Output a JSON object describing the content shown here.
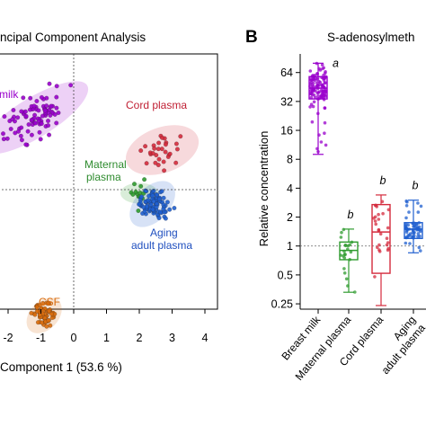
{
  "panel_a": {
    "title_fragment": "ncipal Component Analysis",
    "xlabel_fragment": "Component 1 (53.6 %)",
    "labels": {
      "breast_milk": "milk",
      "cord_plasma": "Cord plasma",
      "maternal_plasma_line1": "Maternal",
      "maternal_plasma_line2": "plasma",
      "aging_line1": "Aging",
      "aging_line2": "adult plasma",
      "csf": "CSF"
    },
    "colors": {
      "breast_milk": "#9900cc",
      "cord_plasma": "#d42a3c",
      "maternal_plasma": "#2e9b2e",
      "aging_adult_plasma": "#1f5fcf",
      "csf": "#d86b0c"
    },
    "chart_data": {
      "type": "scatter",
      "xlim": [
        -2.2,
        4.2
      ],
      "x_ticks": [
        "-2",
        "-1",
        "0",
        "1",
        "2",
        "3",
        "4"
      ],
      "reference_lines": {
        "x": 0,
        "y": 0
      },
      "groups": [
        {
          "id": "breast_milk",
          "label_key": "milk",
          "center": [
            -1.2,
            1.0
          ],
          "spread": [
            0.9,
            0.35
          ],
          "n": 90
        },
        {
          "id": "cord_plasma",
          "label_key": "Cord plasma",
          "center": [
            2.7,
            0.55
          ],
          "spread": [
            0.55,
            0.4
          ],
          "n": 30
        },
        {
          "id": "maternal_plasma",
          "label_key": "Maternal plasma",
          "center": [
            2.0,
            -0.05
          ],
          "spread": [
            0.2,
            0.25
          ],
          "n": 14
        },
        {
          "id": "aging_adult_plasma",
          "label_key": "Aging adult plasma",
          "center": [
            2.4,
            -0.2
          ],
          "spread": [
            0.4,
            0.3
          ],
          "n": 90
        },
        {
          "id": "csf",
          "label_key": "CSF",
          "center": [
            -0.9,
            -1.75
          ],
          "spread": [
            0.3,
            0.25
          ],
          "n": 60
        }
      ]
    }
  },
  "panel_b": {
    "panel_letter": "B",
    "title_fragment": "S-adenosylmeth",
    "ylabel": "Relative concentration",
    "colors": {
      "breast_milk": "#9900cc",
      "maternal_plasma": "#2e9b2e",
      "cord_plasma": "#d42a3c",
      "aging_adult_plasma": "#1f5fcf"
    },
    "chart_data": {
      "type": "box",
      "y_scale": "log2",
      "ylim": [
        0.22,
        100
      ],
      "y_ticks": [
        "0.25",
        "0.5",
        "1",
        "2",
        "4",
        "8",
        "16",
        "32",
        "64"
      ],
      "reference_line": 1,
      "categories": [
        "Breast milk",
        "Maternal plasma",
        "Cord plasma",
        "Aging adult plasma"
      ],
      "category_lines": [
        [
          "Breast milk"
        ],
        [
          "Maternal plasma"
        ],
        [
          "Cord plasma"
        ],
        [
          "Aging",
          "adult plasma"
        ]
      ],
      "significance_letters": [
        "a",
        "b",
        "b",
        "b"
      ],
      "boxes": [
        {
          "category": "Breast milk",
          "min": 9,
          "q1": 34,
          "median": 44,
          "q3": 58,
          "max": 80
        },
        {
          "category": "Maternal plasma",
          "min": 0.33,
          "q1": 0.72,
          "median": 0.9,
          "q3": 1.1,
          "max": 1.5
        },
        {
          "category": "Cord plasma",
          "min": 0.24,
          "q1": 0.52,
          "median": 1.4,
          "q3": 2.7,
          "max": 3.4
        },
        {
          "category": "Aging adult plasma",
          "min": 0.85,
          "q1": 1.2,
          "median": 1.5,
          "q3": 1.75,
          "max": 3.0
        }
      ]
    }
  }
}
